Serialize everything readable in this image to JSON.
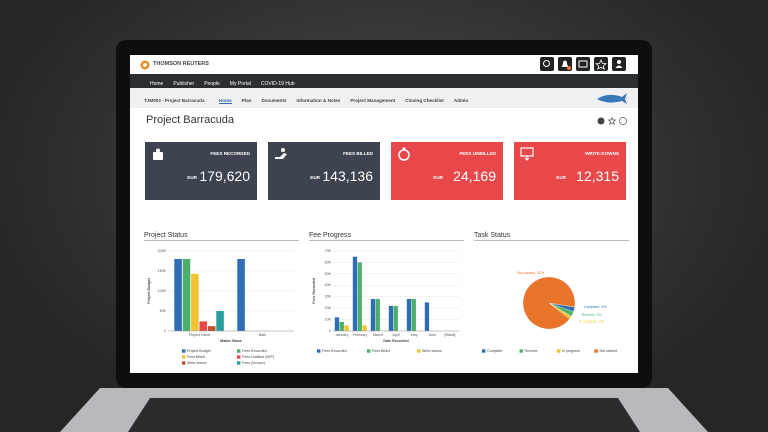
{
  "header": {
    "logo": "THOMSON REUTERS"
  },
  "nav": [
    "Home",
    "Publisher",
    "People",
    "My Portal",
    "COVID-19 Hub"
  ],
  "breadcrumb": {
    "project": "TJM003 - Project Barracuda",
    "tabs": [
      "Home",
      "Plan",
      "Documents",
      "Information & Notes",
      "Project Management",
      "Closing Checklist",
      "Admin"
    ]
  },
  "page_title": "Project Barracuda",
  "cards": [
    {
      "label": "FEES RECORDED",
      "currency": "EUR",
      "amount": "179,620",
      "color": "#3d4450"
    },
    {
      "label": "FEES BILLED",
      "currency": "EUR",
      "amount": "143,136",
      "color": "#3d4450"
    },
    {
      "label": "FEES UNBILLED",
      "currency": "EUR",
      "amount": "24,169",
      "color": "#e8484a"
    },
    {
      "label": "WRITE-DOWNS",
      "currency": "EUR",
      "amount": "12,315",
      "color": "#e8484a"
    }
  ],
  "panels": [
    {
      "type": "bar",
      "title": "Project Status",
      "y_axis_title": "Project Budget",
      "x_axis_title": "Matter Name",
      "categories": [
        "Project Gavel",
        "Bath"
      ],
      "ylim": [
        0,
        200000
      ],
      "yticks": [
        0,
        {
          "value": 50000,
          "label": "50K"
        },
        {
          "value": 100000,
          "label": "100K"
        },
        {
          "value": 150000,
          "label": "150K"
        },
        {
          "value": 200000,
          "label": "200K"
        }
      ],
      "series": [
        {
          "name": "Project Budget",
          "color": "#2f6db5",
          "values": [
            180000,
            180000
          ]
        },
        {
          "name": "Fees Recorded",
          "color": "#4caf6a",
          "values": [
            180000,
            null
          ]
        },
        {
          "name": "Fees Billed",
          "color": "#f2c431",
          "values": [
            143000,
            null
          ]
        },
        {
          "name": "Fees Unbilled (WIP)",
          "color": "#e8484a",
          "values": [
            24000,
            null
          ]
        },
        {
          "name": "Write downs",
          "color": "#c0502a",
          "values": [
            12000,
            null
          ]
        },
        {
          "name": "Fees (Invoice)",
          "color": "#2a9d9d",
          "values": [
            50000,
            null
          ]
        }
      ]
    },
    {
      "type": "bar",
      "title": "Fee Progress",
      "y_axis_title": "Fees Recorded",
      "x_axis_title": "Date Recorded",
      "categories": [
        "January",
        "February",
        "March",
        "April",
        "May",
        "June",
        "[Blank]"
      ],
      "ylim": [
        0,
        70000
      ],
      "yticks": [
        0,
        {
          "value": 10000,
          "label": "10K"
        },
        {
          "value": 20000,
          "label": "20K"
        },
        {
          "value": 30000,
          "label": "30K"
        },
        {
          "value": 40000,
          "label": "40K"
        },
        {
          "value": 50000,
          "label": "50K"
        },
        {
          "value": 60000,
          "label": "60K"
        },
        {
          "value": 70000,
          "label": "70K"
        }
      ],
      "series": [
        {
          "name": "Fees Recorded",
          "color": "#2f6db5",
          "values": [
            12000,
            65000,
            28000,
            22000,
            28000,
            25000,
            0
          ]
        },
        {
          "name": "Fees Billed",
          "color": "#4caf6a",
          "values": [
            8000,
            60000,
            28000,
            22000,
            28000,
            null,
            null
          ]
        },
        {
          "name": "Write downs",
          "color": "#f2c431",
          "values": [
            5000,
            5000,
            null,
            null,
            null,
            null,
            null
          ]
        }
      ]
    },
    {
      "type": "pie",
      "title": "Task Status",
      "categories": [
        "Complete",
        "Receive",
        "In progress",
        "Not started"
      ],
      "values": [
        3,
        3,
        2,
        92
      ],
      "value_labels": [
        "Complete, 3%",
        "Receive, 3%",
        "In progress, 2%",
        "Not started, 92%"
      ],
      "colors": [
        "#2f6db5",
        "#4caf6a",
        "#f2c431",
        "#e8742a"
      ]
    }
  ]
}
